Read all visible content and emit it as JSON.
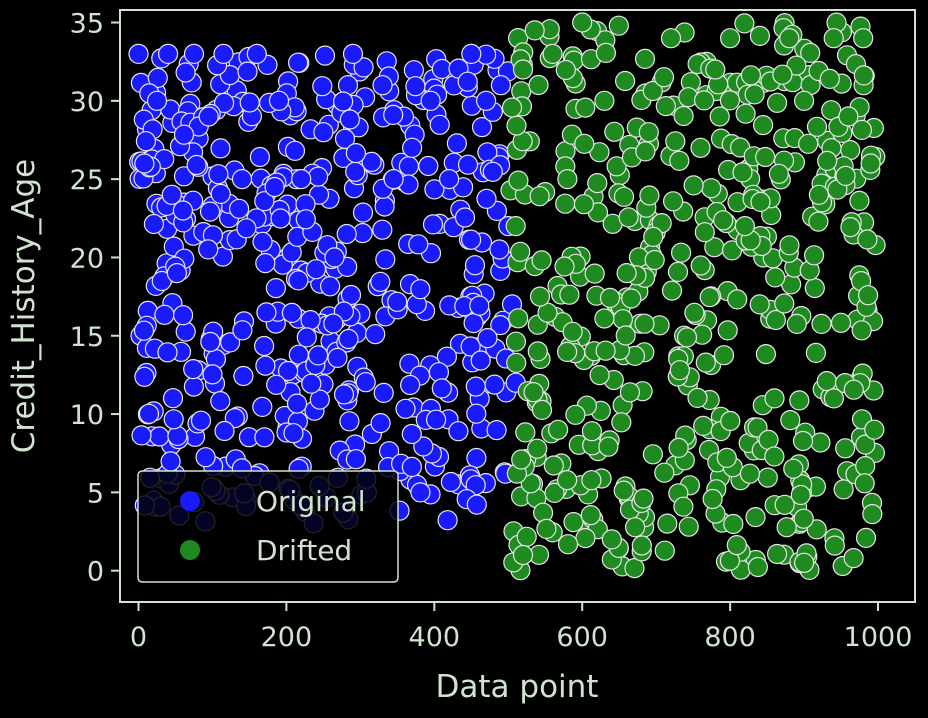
{
  "chart_data": {
    "type": "scatter",
    "title": "",
    "xlabel": "Data point",
    "ylabel": "Credit_History_Age",
    "xlim": [
      -25,
      1050
    ],
    "ylim": [
      -2,
      35.8
    ],
    "xticks": [
      "0",
      "200",
      "400",
      "600",
      "800",
      "1000"
    ],
    "yticks": [
      "0",
      "5",
      "10",
      "15",
      "20",
      "25",
      "30",
      "35"
    ],
    "grid": false,
    "legend_position": "lower-left",
    "background": "#000000",
    "axis_color": "#cfe3cf",
    "series": [
      {
        "name": "Original",
        "color": "#1a1aff",
        "x_range": [
          0,
          500
        ],
        "y_range": [
          3,
          33
        ],
        "count": 500,
        "x": [
          0,
          8,
          25,
          40,
          45,
          52,
          60,
          75,
          95,
          115,
          140,
          160,
          190,
          220,
          250,
          265,
          290,
          330,
          345,
          370,
          395,
          420,
          450,
          470,
          490,
          500,
          505,
          510
        ],
        "y": [
          33,
          26,
          30,
          33,
          24,
          19,
          23,
          33,
          29,
          33,
          25,
          33,
          30,
          25,
          28,
          20,
          33,
          31,
          25,
          27,
          30,
          25,
          33,
          30,
          31,
          22,
          17,
          12
        ]
      },
      {
        "name": "Drifted",
        "color": "#1f8a1f",
        "x_range": [
          500,
          1000
        ],
        "y_range": [
          0,
          35
        ],
        "count": 500,
        "x": [
          510,
          520,
          540,
          560,
          580,
          600,
          630,
          660,
          690,
          720,
          760,
          780,
          800,
          820,
          840,
          860,
          880,
          900,
          920,
          940,
          960,
          980,
          990,
          995,
          520,
          640,
          900
        ],
        "y": [
          22,
          32,
          14,
          33,
          25,
          35,
          30,
          19,
          28,
          34,
          27,
          32,
          34,
          22,
          17,
          11,
          34,
          30,
          24,
          34,
          29,
          34,
          26,
          9,
          1,
          2,
          0.5
        ]
      }
    ],
    "legend": [
      {
        "label": "Original",
        "color": "#1a1aff"
      },
      {
        "label": "Drifted",
        "color": "#1f8a1f"
      }
    ]
  }
}
